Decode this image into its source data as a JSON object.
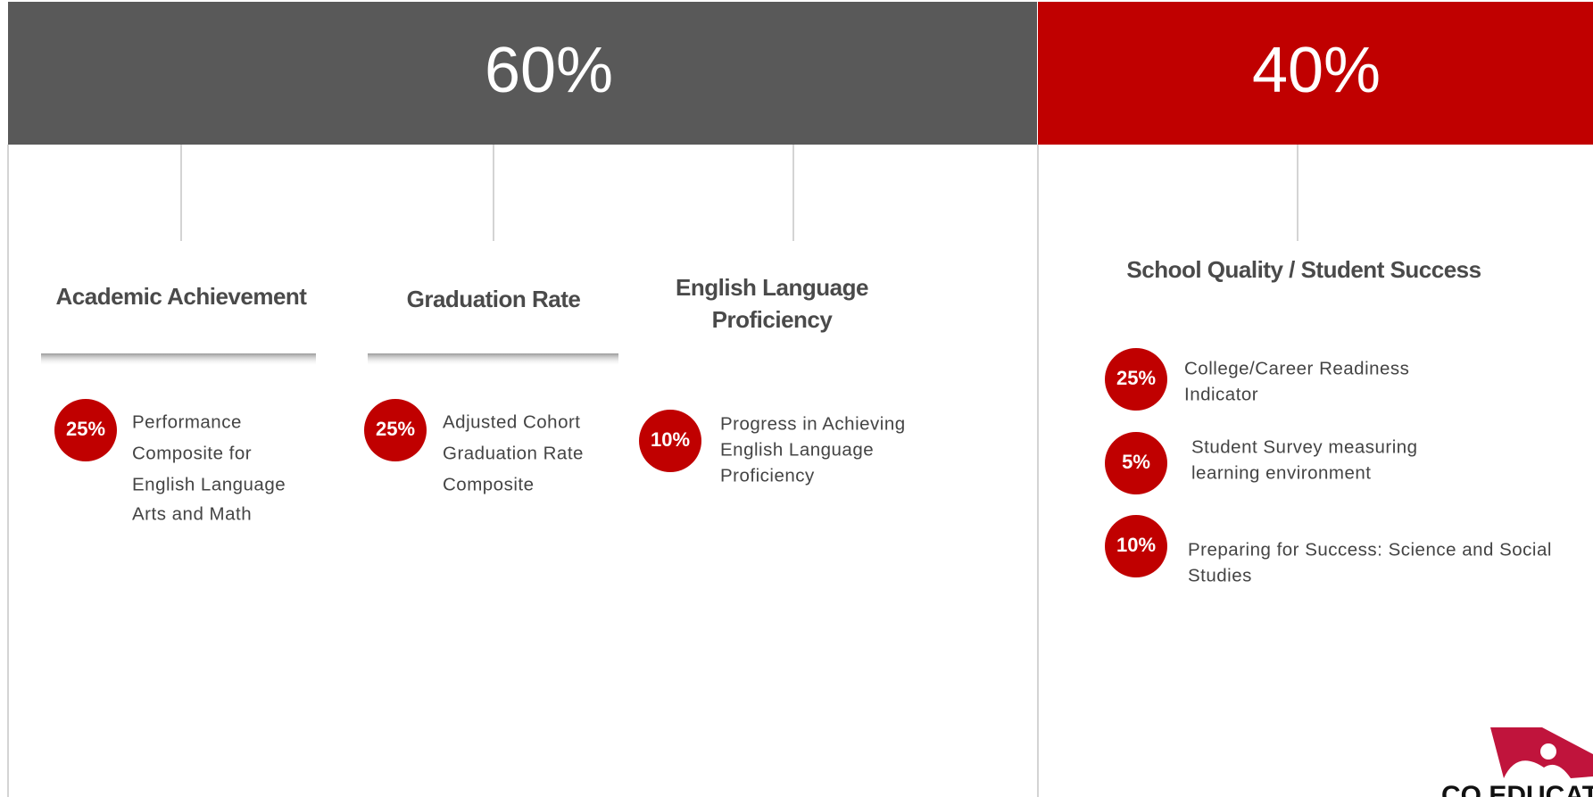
{
  "sections": [
    {
      "percent": "60%",
      "components": [
        {
          "title": [
            "Academic Achievement"
          ],
          "items": [
            {
              "percent": "25%",
              "lines": [
                "Performance",
                "Composite for",
                "English Language",
                "Arts and Math"
              ]
            }
          ]
        },
        {
          "title": [
            "Graduation Rate"
          ],
          "items": [
            {
              "percent": "25%",
              "lines": [
                "Adjusted Cohort",
                "Graduation Rate",
                "Composite"
              ]
            }
          ]
        },
        {
          "title": [
            "English Language",
            "Proficiency"
          ],
          "items": [
            {
              "percent": "10%",
              "lines": [
                "Progress in  Achieving",
                "English  Language",
                "Proficiency"
              ]
            }
          ]
        }
      ]
    },
    {
      "percent": "40%",
      "components": [
        {
          "title": [
            "School Quality / Student Success"
          ],
          "items": [
            {
              "percent": "25%",
              "lines": [
                "College/Career Readiness",
                "Indicator"
              ]
            },
            {
              "percent": "5%",
              "lines": [
                "Student Survey measuring",
                "learning environment"
              ]
            },
            {
              "percent": "10%",
              "lines": [
                "Preparing for Success: Science and Social",
                "Studies"
              ]
            }
          ]
        }
      ]
    }
  ],
  "logo": {
    "text": "CO EDUCATI"
  }
}
